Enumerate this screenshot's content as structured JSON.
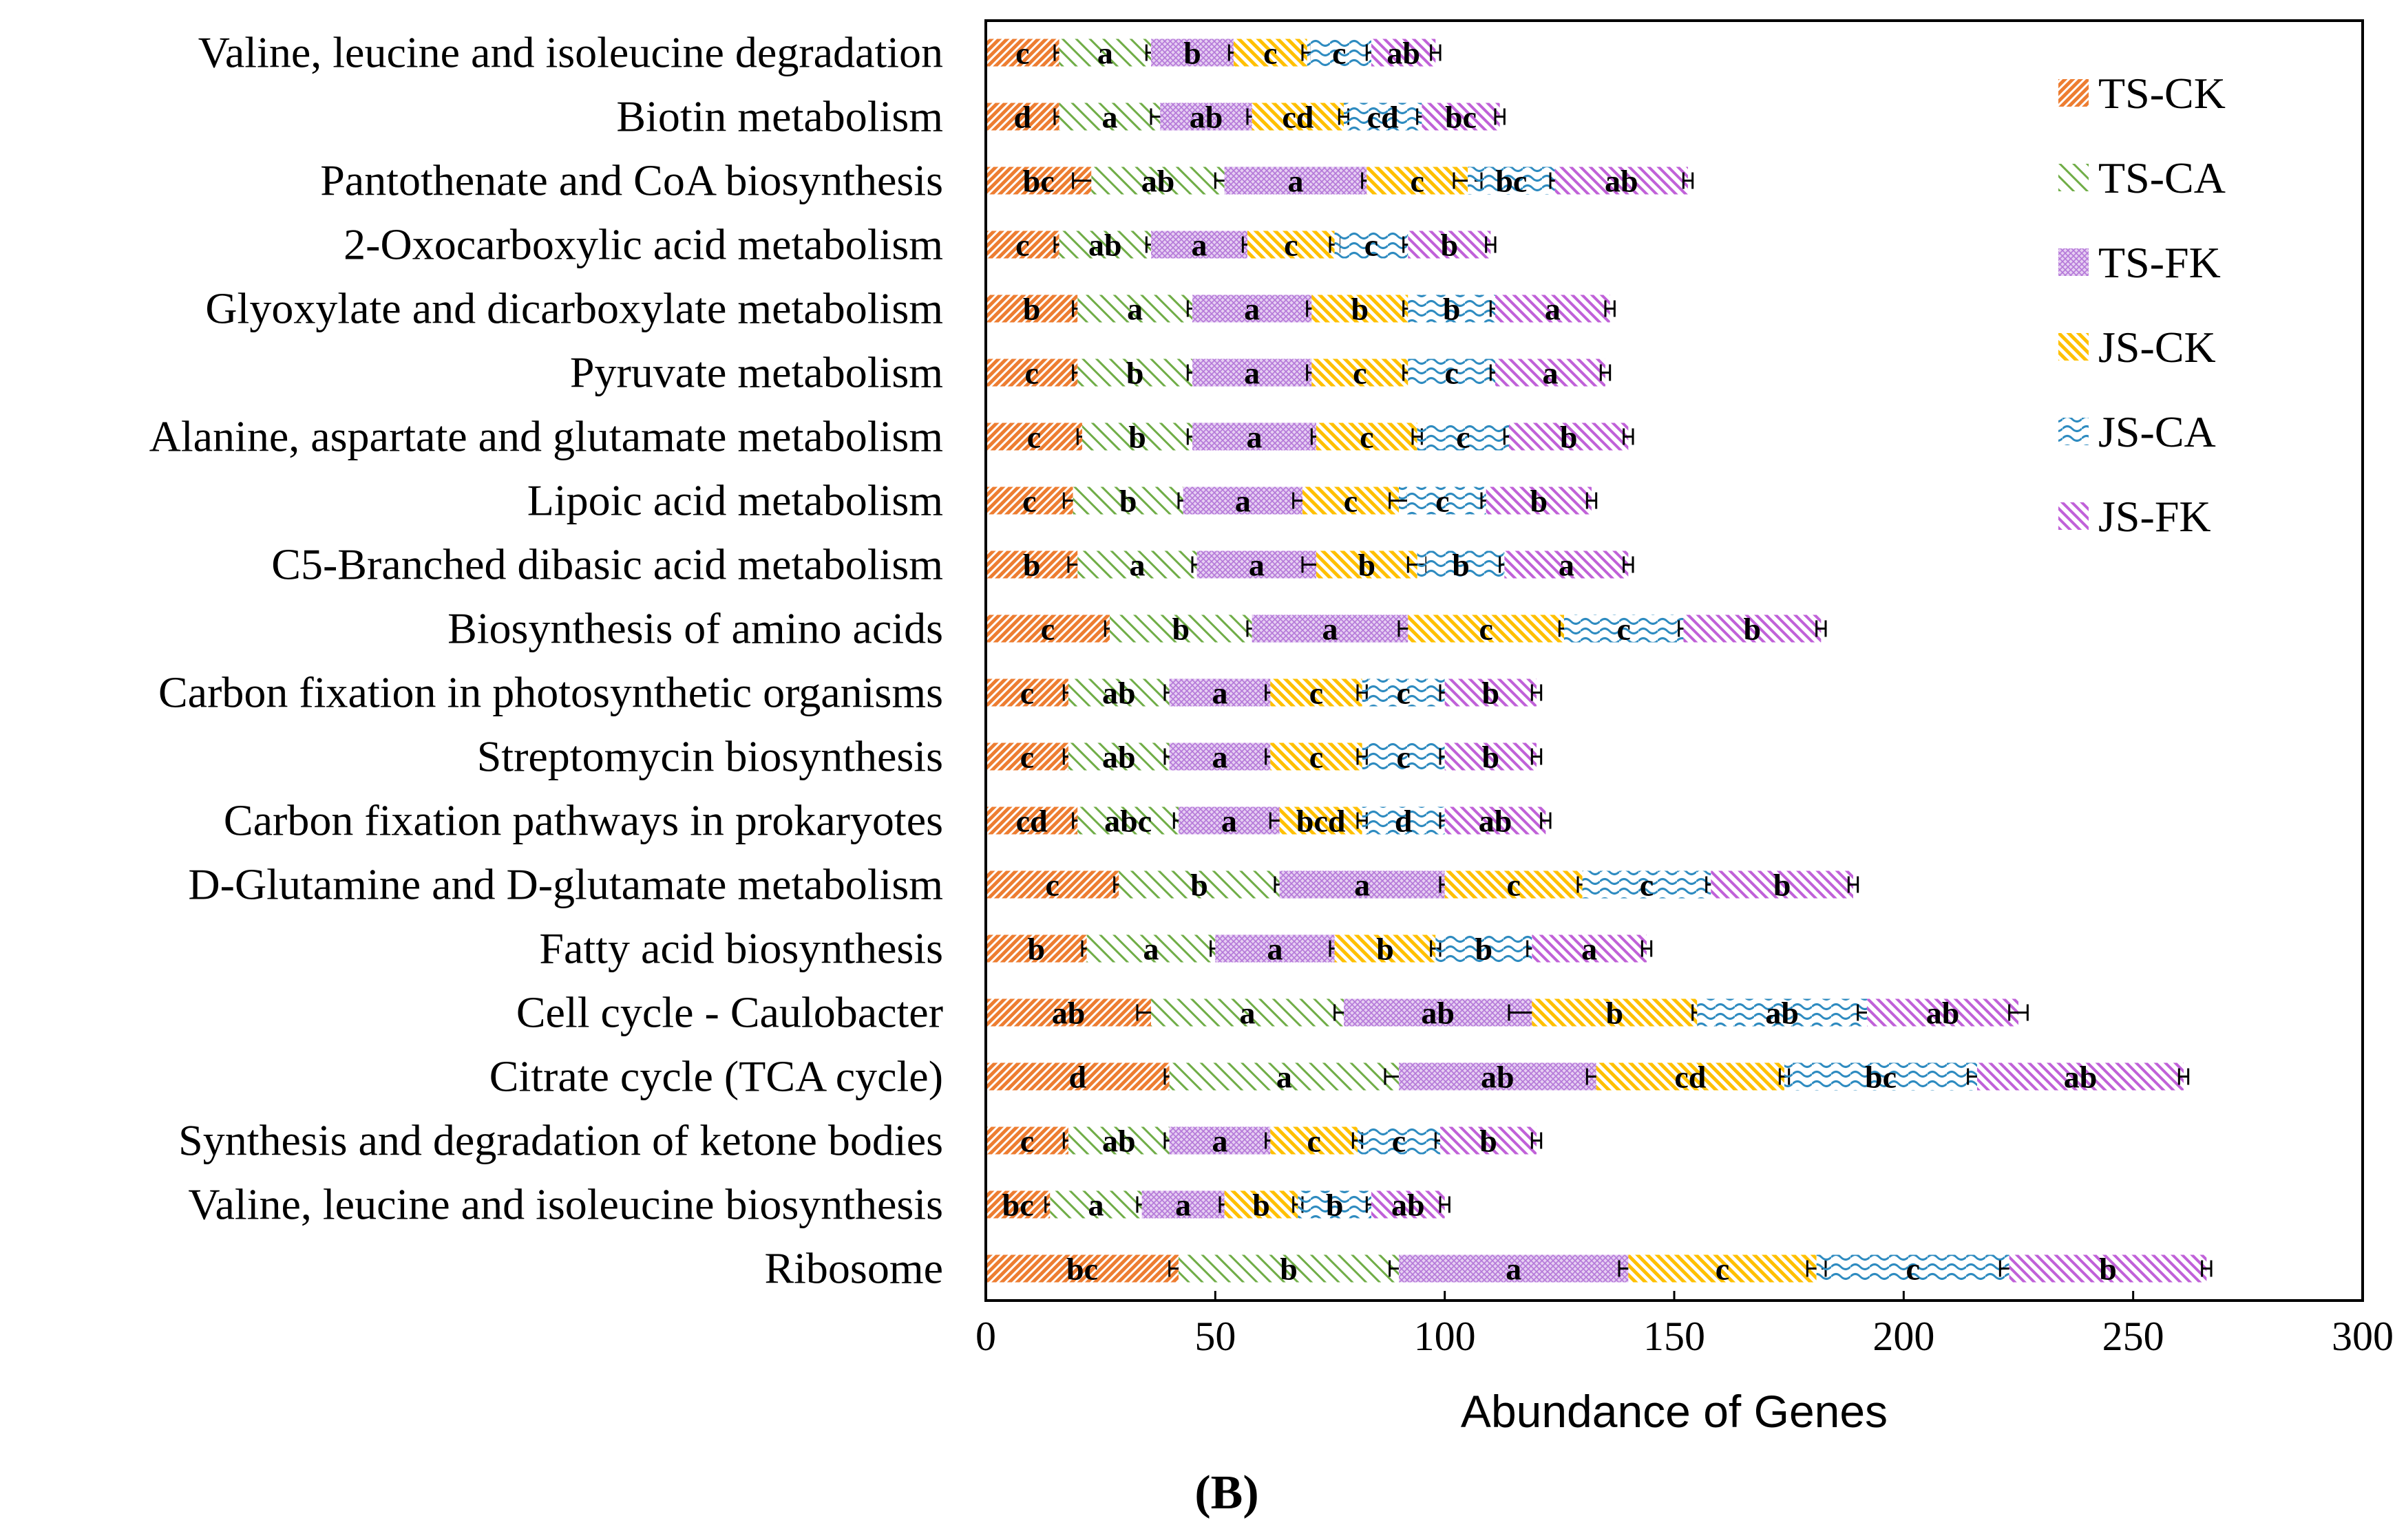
{
  "chart_data": {
    "type": "bar",
    "orientation": "horizontal",
    "stacked": true,
    "title": "",
    "xlabel": "Abundance of Genes",
    "ylabel": "",
    "xlim": [
      0,
      300
    ],
    "x_ticks": [
      0,
      50,
      100,
      150,
      200,
      250,
      300
    ],
    "panel_label": "(B)",
    "legend_position": "top-right",
    "categories": [
      "Valine, leucine and isoleucine degradation",
      "Biotin metabolism",
      "Pantothenate and CoA biosynthesis",
      "2-Oxocarboxylic acid metabolism",
      "Glyoxylate and dicarboxylate metabolism",
      "Pyruvate metabolism",
      "Alanine, aspartate and glutamate metabolism",
      "Lipoic acid metabolism",
      "C5-Branched dibasic acid metabolism",
      "Biosynthesis of amino acids",
      "Carbon fixation in photosynthetic organisms",
      "Streptomycin biosynthesis",
      "Carbon fixation pathways in prokaryotes",
      "D-Glutamine and D-glutamate metabolism",
      "Fatty acid biosynthesis",
      "Cell cycle - Caulobacter",
      "Citrate cycle (TCA cycle)",
      "Synthesis and degradation of ketone bodies",
      "Valine, leucine and isoleucine biosynthesis",
      "Ribosome"
    ],
    "series": [
      {
        "name": "TS-CK",
        "color": "#ED7D31",
        "pattern": "diag-dense",
        "values": [
          16,
          16,
          23,
          16,
          20,
          20,
          21,
          19,
          20,
          27,
          18,
          18,
          20,
          29,
          22,
          36,
          40,
          18,
          14,
          42
        ],
        "errors": [
          1,
          1,
          4,
          1,
          1,
          1,
          1,
          2,
          2,
          1,
          1,
          1,
          1,
          1,
          1,
          3,
          1,
          1,
          1,
          2
        ],
        "labels": [
          "c",
          "d",
          "bc",
          "c",
          "b",
          "c",
          "c",
          "c",
          "b",
          "c",
          "c",
          "c",
          "cd",
          "c",
          "b",
          "ab",
          "d",
          "c",
          "bc",
          "bc"
        ]
      },
      {
        "name": "TS-CA",
        "color": "#70AD47",
        "pattern": "diag-sparse",
        "values": [
          20,
          22,
          29,
          20,
          25,
          25,
          24,
          24,
          26,
          31,
          22,
          22,
          22,
          35,
          28,
          42,
          50,
          22,
          20,
          48
        ],
        "errors": [
          1,
          2,
          2,
          1,
          1,
          1,
          1,
          1,
          1,
          1,
          1,
          1,
          1,
          1,
          1,
          2,
          3,
          1,
          1,
          2
        ],
        "labels": [
          "a",
          "a",
          "ab",
          "ab",
          "a",
          "b",
          "b",
          "b",
          "a",
          "b",
          "ab",
          "ab",
          "abc",
          "b",
          "a",
          "a",
          "a",
          "ab",
          "a",
          "b"
        ]
      },
      {
        "name": "TS-FK",
        "color": "#B477D8",
        "pattern": "cross",
        "values": [
          18,
          20,
          31,
          21,
          26,
          26,
          27,
          26,
          26,
          34,
          22,
          22,
          22,
          36,
          26,
          41,
          43,
          22,
          18,
          50
        ],
        "errors": [
          1,
          1,
          1,
          1,
          1,
          1,
          1,
          2,
          3,
          2,
          1,
          1,
          2,
          1,
          1,
          5,
          2,
          1,
          1,
          2
        ],
        "labels": [
          "b",
          "ab",
          "a",
          "a",
          "a",
          "a",
          "a",
          "a",
          "a",
          "a",
          "a",
          "a",
          "a",
          "a",
          "a",
          "ab",
          "ab",
          "a",
          "a",
          "a"
        ]
      },
      {
        "name": "JS-CK",
        "color": "#FFC000",
        "pattern": "diag-medium",
        "values": [
          16,
          20,
          22,
          19,
          21,
          21,
          22,
          21,
          22,
          34,
          20,
          20,
          18,
          30,
          22,
          36,
          41,
          19,
          16,
          41
        ],
        "errors": [
          1,
          1,
          3,
          1,
          1,
          1,
          1,
          2,
          2,
          1,
          1,
          1,
          1,
          1,
          1,
          1,
          1,
          1,
          1,
          2
        ],
        "labels": [
          "c",
          "cd",
          "c",
          "c",
          "b",
          "c",
          "c",
          "c",
          "b",
          "c",
          "c",
          "c",
          "bcd",
          "c",
          "b",
          "b",
          "cd",
          "c",
          "b",
          "c"
        ]
      },
      {
        "name": "JS-CA",
        "color": "#2E8BC0",
        "pattern": "wave",
        "values": [
          14,
          17,
          19,
          16,
          19,
          19,
          20,
          19,
          19,
          26,
          18,
          18,
          18,
          28,
          21,
          37,
          42,
          18,
          16,
          42
        ],
        "errors": [
          1,
          1,
          1,
          1,
          1,
          1,
          1,
          1,
          1,
          1,
          1,
          1,
          1,
          1,
          1,
          2,
          2,
          1,
          1,
          2
        ],
        "labels": [
          "c",
          "cd",
          "bc",
          "c",
          "b",
          "c",
          "c",
          "c",
          "b",
          "c",
          "c",
          "c",
          "d",
          "c",
          "b",
          "ab",
          "bc",
          "c",
          "b",
          "c"
        ]
      },
      {
        "name": "JS-FK",
        "color": "#C061D8",
        "pattern": "diag-purple",
        "values": [
          14,
          17,
          29,
          18,
          25,
          24,
          26,
          23,
          27,
          30,
          20,
          20,
          22,
          31,
          25,
          33,
          45,
          21,
          16,
          43
        ],
        "errors": [
          1,
          1,
          1,
          1,
          1,
          1,
          1,
          1,
          1,
          1,
          1,
          1,
          1,
          1,
          1,
          2,
          1,
          1,
          1,
          1
        ],
        "labels": [
          "ab",
          "bc",
          "ab",
          "b",
          "a",
          "a",
          "b",
          "b",
          "a",
          "b",
          "b",
          "b",
          "ab",
          "b",
          "a",
          "ab",
          "ab",
          "b",
          "ab",
          "b"
        ]
      }
    ]
  }
}
